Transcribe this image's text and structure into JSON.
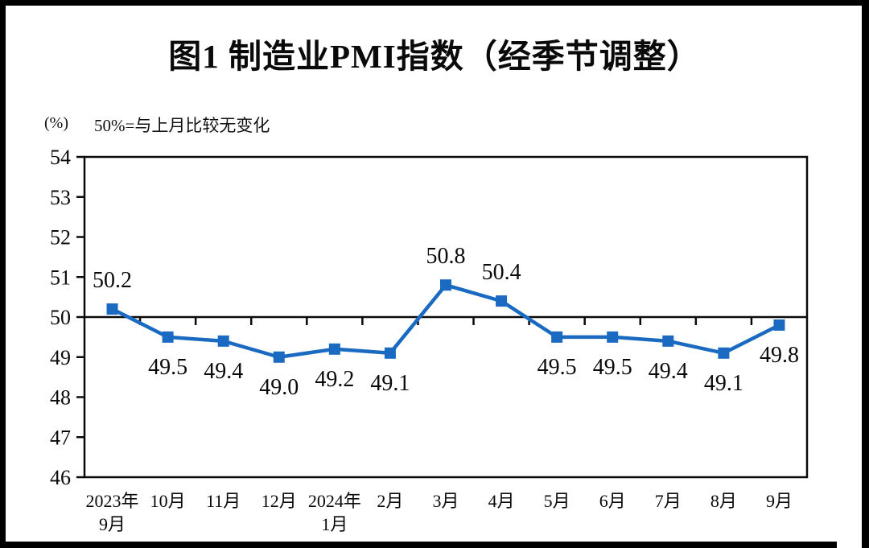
{
  "header": {
    "title": "图1 制造业PMI指数（经季节调整）",
    "unit_label": "(%)",
    "note": "50%=与上月比较无变化"
  },
  "chart_data": {
    "type": "line",
    "title": "图1 制造业PMI指数（经季节调整）",
    "ylabel": "(%)",
    "annotation": "50%=与上月比较无变化",
    "categories": [
      "2023年\n9月",
      "10月",
      "11月",
      "12月",
      "2024年\n1月",
      "2月",
      "3月",
      "4月",
      "5月",
      "6月",
      "7月",
      "8月",
      "9月"
    ],
    "values": [
      50.2,
      49.5,
      49.4,
      49.0,
      49.2,
      49.1,
      50.8,
      50.4,
      49.5,
      49.5,
      49.4,
      49.1,
      49.8
    ],
    "point_labels": [
      "50.2",
      "49.5",
      "49.4",
      "49.0",
      "49.2",
      "49.1",
      "50.8",
      "50.4",
      "49.5",
      "49.5",
      "49.4",
      "49.1",
      "49.8"
    ],
    "label_side": [
      "above",
      "below",
      "below",
      "below",
      "below",
      "below",
      "above",
      "above",
      "below",
      "below",
      "below",
      "below",
      "below"
    ],
    "ylim": [
      46,
      54
    ],
    "y_ticks": [
      54,
      53,
      52,
      51,
      50,
      49,
      48,
      47,
      46
    ],
    "reference_line": 50,
    "grid": false,
    "legend": false,
    "line_color": "#1a6ac2",
    "axis_color": "#0a0a0a",
    "marker": "square"
  }
}
